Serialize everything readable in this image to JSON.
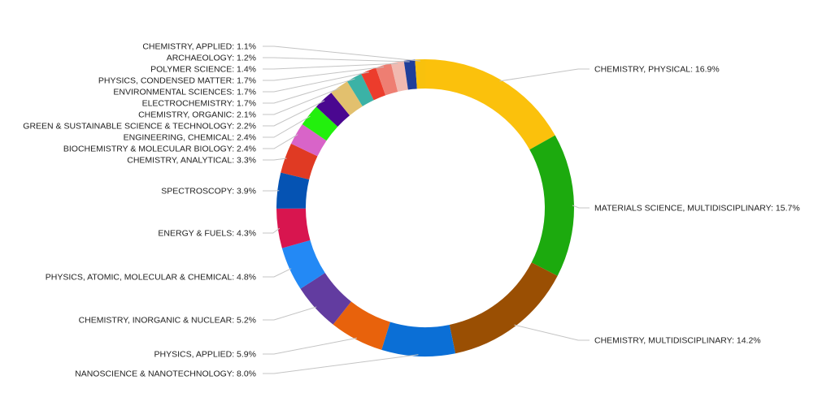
{
  "chart_data": {
    "type": "pie",
    "style": "donut",
    "values_unit": "percent",
    "slices": [
      {
        "label": "CHEMISTRY, PHYSICAL",
        "value": 16.9,
        "display": "CHEMISTRY, PHYSICAL: 16.9%",
        "color": "#fbc10c"
      },
      {
        "label": "MATERIALS SCIENCE, MULTIDISCIPLINARY",
        "value": 15.7,
        "display": "MATERIALS SCIENCE, MULTIDISCIPLINARY: 15.7%",
        "color": "#1caa0e"
      },
      {
        "label": "CHEMISTRY, MULTIDISCIPLINARY",
        "value": 14.2,
        "display": "CHEMISTRY, MULTIDISCIPLINARY: 14.2%",
        "color": "#9a4f03"
      },
      {
        "label": "NANOSCIENCE & NANOTECHNOLOGY",
        "value": 8.0,
        "display": "NANOSCIENCE & NANOTECHNOLOGY: 8.0%",
        "color": "#0b6fd6"
      },
      {
        "label": "PHYSICS, APPLIED",
        "value": 5.9,
        "display": "PHYSICS, APPLIED: 5.9%",
        "color": "#e8620c"
      },
      {
        "label": "CHEMISTRY, INORGANIC & NUCLEAR",
        "value": 5.2,
        "display": "CHEMISTRY, INORGANIC & NUCLEAR: 5.2%",
        "color": "#623ca0"
      },
      {
        "label": "PHYSICS, ATOMIC, MOLECULAR & CHEMICAL",
        "value": 4.8,
        "display": "PHYSICS, ATOMIC, MOLECULAR & CHEMICAL: 4.8%",
        "color": "#2389f5"
      },
      {
        "label": "ENERGY & FUELS",
        "value": 4.3,
        "display": "ENERGY & FUELS: 4.3%",
        "color": "#d8154f"
      },
      {
        "label": "SPECTROSCOPY",
        "value": 3.9,
        "display": "SPECTROSCOPY: 3.9%",
        "color": "#0553b3"
      },
      {
        "label": "CHEMISTRY, ANALYTICAL",
        "value": 3.3,
        "display": "CHEMISTRY, ANALYTICAL: 3.3%",
        "color": "#e03a23"
      },
      {
        "label": "BIOCHEMISTRY & MOLECULAR BIOLOGY",
        "value": 2.4,
        "display": "BIOCHEMISTRY & MOLECULAR BIOLOGY: 2.4%",
        "color": "#d864c8"
      },
      {
        "label": "ENGINEERING, CHEMICAL",
        "value": 2.4,
        "display": "ENGINEERING, CHEMICAL: 2.4%",
        "color": "#22f00d"
      },
      {
        "label": "GREEN & SUSTAINABLE SCIENCE & TECHNOLOGY",
        "value": 2.2,
        "display": "GREEN & SUSTAINABLE SCIENCE & TECHNOLOGY: 2.2%",
        "color": "#4a0790"
      },
      {
        "label": "CHEMISTRY, ORGANIC",
        "value": 2.1,
        "display": "CHEMISTRY, ORGANIC: 2.1%",
        "color": "#e2c06e"
      },
      {
        "label": "ELECTROCHEMISTRY",
        "value": 1.7,
        "display": "ELECTROCHEMISTRY: 1.7%",
        "color": "#3bb2a6"
      },
      {
        "label": "ENVIRONMENTAL SCIENCES",
        "value": 1.7,
        "display": "ENVIRONMENTAL SCIENCES: 1.7%",
        "color": "#ec3c2c"
      },
      {
        "label": "PHYSICS, CONDENSED MATTER",
        "value": 1.7,
        "display": "PHYSICS, CONDENSED MATTER: 1.7%",
        "color": "#ee7e72"
      },
      {
        "label": "POLYMER SCIENCE",
        "value": 1.4,
        "display": "POLYMER SCIENCE: 1.4%",
        "color": "#f1b9b0"
      },
      {
        "label": "ARCHAEOLOGY",
        "value": 1.2,
        "display": "ARCHAEOLOGY: 1.2%",
        "color": "#1f3f9a"
      },
      {
        "label": "CHEMISTRY, APPLIED",
        "value": 1.1,
        "display": "CHEMISTRY, APPLIED: 1.1%",
        "color": "#f8c10d"
      }
    ]
  }
}
